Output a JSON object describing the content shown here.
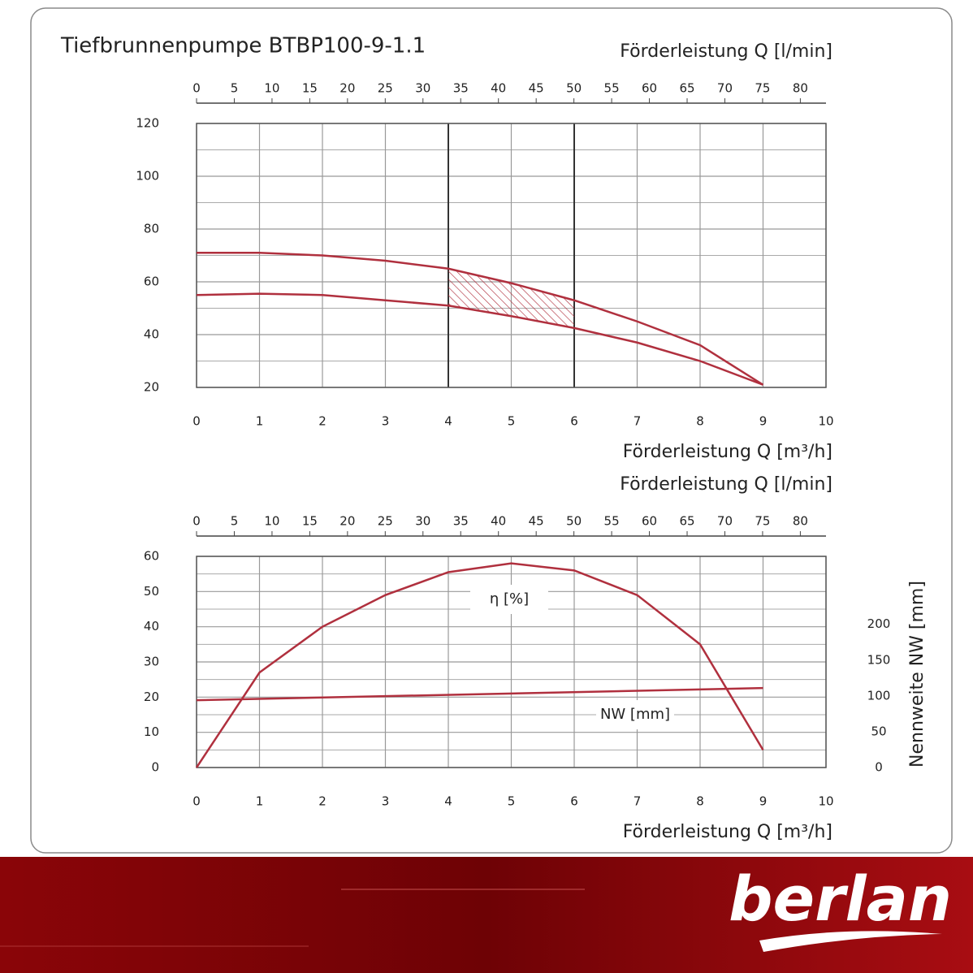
{
  "chart_data": [
    {
      "type": "line",
      "title": "Tiefbrunnenpumpe BTBP100-9-1.1",
      "x_label": "Förderleistung Q [m³/h]",
      "x2_label": "Förderleistung Q [l/min]",
      "xlim": [
        0,
        10
      ],
      "xticks": [
        0,
        1,
        2,
        3,
        4,
        5,
        6,
        7,
        8,
        9,
        10
      ],
      "x2lim": [
        0,
        83.4
      ],
      "x2ticks": [
        0,
        5,
        10,
        15,
        20,
        25,
        30,
        35,
        40,
        45,
        50,
        55,
        60,
        65,
        70,
        75,
        80
      ],
      "ylim": [
        20,
        120
      ],
      "yticks": [
        20,
        40,
        60,
        80,
        100,
        120
      ],
      "grid": true,
      "highlight_range": [
        4,
        6
      ],
      "series": [
        {
          "color": "#b0303e",
          "x": [
            0,
            1,
            2,
            3,
            4,
            5,
            6,
            7,
            8,
            9
          ],
          "values": [
            71,
            71,
            70,
            68,
            65,
            59.5,
            53,
            45,
            36,
            21
          ]
        },
        {
          "color": "#b0303e",
          "x": [
            0,
            1,
            2,
            3,
            4,
            5,
            6,
            7,
            8,
            9
          ],
          "values": [
            55,
            55.5,
            55,
            53,
            51,
            47,
            42.5,
            37,
            30,
            21
          ]
        }
      ]
    },
    {
      "type": "line",
      "x_label": "Förderleistung Q [m³/h]",
      "x2_label": "Förderleistung Q [l/min]",
      "xlim": [
        0,
        10
      ],
      "xticks": [
        0,
        1,
        2,
        3,
        4,
        5,
        6,
        7,
        8,
        9,
        10
      ],
      "x2lim": [
        0,
        83.4
      ],
      "x2ticks": [
        0,
        5,
        10,
        15,
        20,
        25,
        30,
        35,
        40,
        45,
        50,
        55,
        60,
        65,
        70,
        75,
        80
      ],
      "ylim": [
        0,
        60
      ],
      "yticks": [
        0,
        10,
        20,
        30,
        40,
        50,
        60
      ],
      "y2lim": [
        0,
        295
      ],
      "y2ticks": [
        0,
        50,
        100,
        150,
        200
      ],
      "y2_label": "Nennweite NW [mm]",
      "grid": true,
      "series": [
        {
          "name": "η [%]",
          "color": "#b0303e",
          "x": [
            0,
            1,
            2,
            3,
            4,
            5,
            6,
            7,
            8,
            9
          ],
          "values": [
            0,
            27,
            40,
            49,
            55.5,
            58,
            56,
            49,
            35,
            5
          ]
        },
        {
          "name": "NW [mm]",
          "color": "#b0303e",
          "axis": "y2",
          "x": [
            0,
            9
          ],
          "values": [
            94,
            111
          ]
        }
      ]
    }
  ],
  "brand": "berlan"
}
